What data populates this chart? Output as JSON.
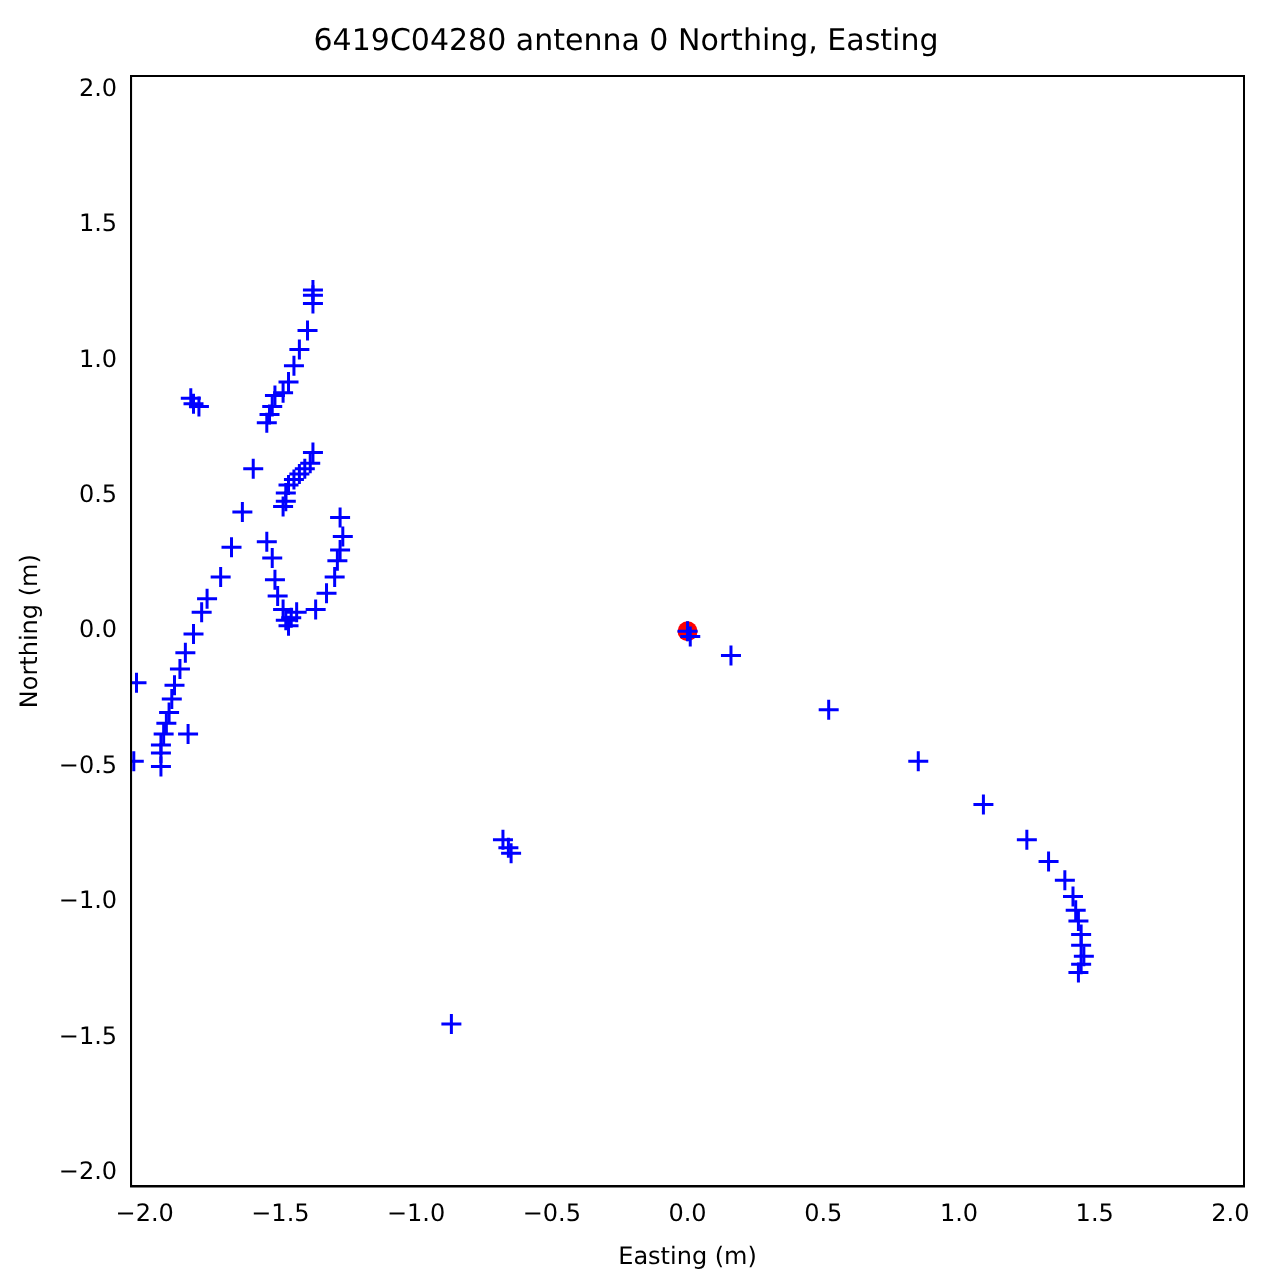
{
  "chart_data": {
    "type": "scatter",
    "title": "6419C04280 antenna 0 Northing, Easting",
    "xlabel": "Easting (m)",
    "ylabel": "Northing (m)",
    "xlim": [
      -2.05,
      2.05
    ],
    "ylim": [
      -2.05,
      2.05
    ],
    "xticks": [
      {
        "value": -2,
        "label": "−2.0"
      },
      {
        "value": -1.5,
        "label": "−1.5"
      },
      {
        "value": -1,
        "label": "−1.0"
      },
      {
        "value": -0.5,
        "label": "−0.5"
      },
      {
        "value": 0,
        "label": "0.0"
      },
      {
        "value": 0.5,
        "label": "0.5"
      },
      {
        "value": 1,
        "label": "1.0"
      },
      {
        "value": 1.5,
        "label": "1.5"
      },
      {
        "value": 2,
        "label": "2.0"
      }
    ],
    "yticks": [
      {
        "value": -2,
        "label": "−2.0"
      },
      {
        "value": -1.5,
        "label": "−1.5"
      },
      {
        "value": -1,
        "label": "−1.0"
      },
      {
        "value": -0.5,
        "label": "−0.5"
      },
      {
        "value": 0,
        "label": "0.0"
      },
      {
        "value": 0.5,
        "label": "0.5"
      },
      {
        "value": 1,
        "label": "1.0"
      },
      {
        "value": 1.5,
        "label": "1.5"
      },
      {
        "value": 2,
        "label": "2.0"
      }
    ],
    "grid": false,
    "legend": false,
    "series": [
      {
        "color": "#0000ff",
        "marker": "cross",
        "x": [
          -1.38,
          -1.38,
          -1.38,
          -1.4,
          -1.43,
          -1.45,
          -1.47,
          -1.49,
          -1.52,
          -1.53,
          -1.54,
          -1.55,
          -1.83,
          -1.82,
          -1.8,
          -1.38,
          -1.39,
          -1.41,
          -1.43,
          -1.45,
          -1.47,
          -1.48,
          -1.48,
          -1.49,
          -1.6,
          -1.64,
          -1.68,
          -1.72,
          -1.77,
          -1.79,
          -1.82,
          -1.85,
          -1.87,
          -1.89,
          -1.9,
          -1.91,
          -1.92,
          -1.93,
          -1.94,
          -1.94,
          -1.94,
          -1.84,
          -2.03,
          -2.04,
          -1.55,
          -1.53,
          -1.52,
          -1.51,
          -1.49,
          -1.48,
          -1.47,
          -1.46,
          -1.44,
          -1.37,
          -1.33,
          -1.3,
          -1.29,
          -1.28,
          -1.27,
          -1.28,
          -0.68,
          -0.66,
          -0.65,
          -0.87,
          0,
          0.01,
          0.16,
          0.52,
          0.85,
          1.09,
          1.25,
          1.33,
          1.39,
          1.42,
          1.43,
          1.44,
          1.45,
          1.45,
          1.46,
          1.45,
          1.44
        ],
        "values": [
          1.26,
          1.24,
          1.21,
          1.11,
          1.04,
          0.98,
          0.92,
          0.88,
          0.87,
          0.83,
          0.8,
          0.77,
          0.86,
          0.84,
          0.83,
          0.66,
          0.62,
          0.6,
          0.58,
          0.56,
          0.54,
          0.51,
          0.48,
          0.46,
          0.6,
          0.44,
          0.31,
          0.2,
          0.12,
          0.07,
          -0.01,
          -0.08,
          -0.14,
          -0.2,
          -0.25,
          -0.3,
          -0.34,
          -0.38,
          -0.42,
          -0.45,
          -0.5,
          -0.38,
          -0.19,
          -0.48,
          0.33,
          0.27,
          0.19,
          0.13,
          0.08,
          0.04,
          0.02,
          0.05,
          0.07,
          0.08,
          0.14,
          0.2,
          0.26,
          0.3,
          0.35,
          0.42,
          -0.77,
          -0.8,
          -0.82,
          -1.45,
          0,
          -0.02,
          -0.09,
          -0.29,
          -0.48,
          -0.64,
          -0.77,
          -0.85,
          -0.92,
          -0.98,
          -1.03,
          -1.07,
          -1.12,
          -1.16,
          -1.2,
          -1.23,
          -1.26
        ]
      },
      {
        "color": "#ff0000",
        "marker": "circle",
        "x": [
          0
        ],
        "values": [
          0
        ]
      }
    ]
  }
}
